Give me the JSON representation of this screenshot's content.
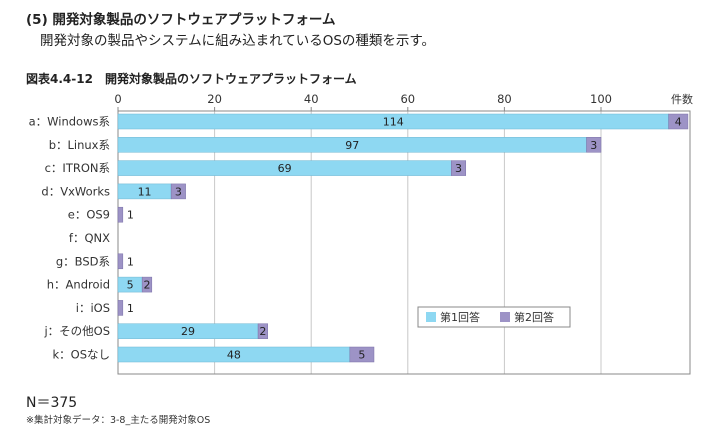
{
  "header": {
    "section_title": "(5) 開発対象製品のソフトウェアプラットフォーム",
    "description": "開発対象の製品やシステムに組み込まれているOSの種類を示す。"
  },
  "figure": {
    "title": "図表4.4-12　開発対象製品のソフトウェアプラットフォーム",
    "n_label": "N＝375",
    "note": "※集計対象データ：3-8_主たる開発対象OS"
  },
  "chart_data": {
    "type": "bar",
    "orientation": "horizontal",
    "stacked": true,
    "title": "図表4.4-12　開発対象製品のソフトウェアプラットフォーム",
    "xlabel": "件数",
    "xlim": [
      0,
      120
    ],
    "xticks": [
      0,
      20,
      40,
      60,
      80,
      100
    ],
    "grid": true,
    "legend_position": "bottom-right",
    "categories": [
      "a：Windows系",
      "b：Linux系",
      "c：ITRON系",
      "d：VxWorks",
      "e：OS9",
      "f：QNX",
      "g：BSD系",
      "h：Android",
      "i：iOS",
      "j：その他OS",
      "k：OSなし"
    ],
    "series": [
      {
        "name": "第1回答",
        "color": "#8ed8f2",
        "values": [
          114,
          97,
          69,
          11,
          0,
          0,
          0,
          5,
          0,
          29,
          48
        ]
      },
      {
        "name": "第2回答",
        "color": "#9d93c6",
        "values": [
          4,
          3,
          3,
          3,
          1,
          0,
          1,
          2,
          1,
          2,
          5
        ]
      }
    ]
  }
}
